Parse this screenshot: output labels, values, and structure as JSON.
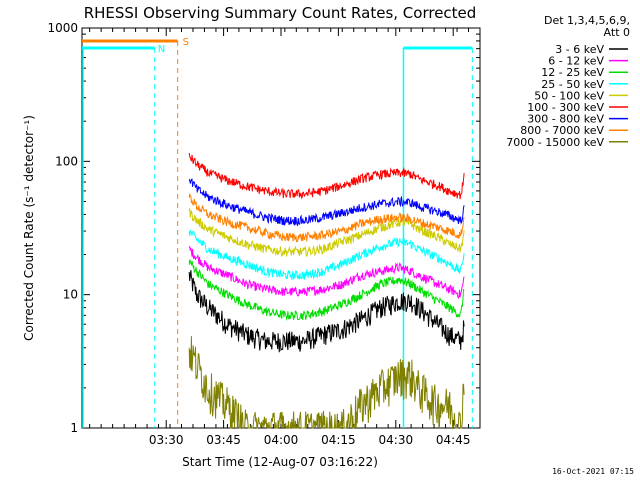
{
  "chart_data": {
    "type": "line",
    "title": "RHESSI Observing Summary Count Rates, Corrected",
    "xlabel": "Start Time (12-Aug-07 03:16:22)",
    "ylabel": "Corrected Count Rate (s⁻¹ detector⁻¹)",
    "y_scale": "log",
    "ylim": [
      1,
      1000
    ],
    "xlim_minutes": [
      -8,
      96
    ],
    "x_ticks": [
      {
        "label": "03:30",
        "value": 14
      },
      {
        "label": "03:45",
        "value": 29
      },
      {
        "label": "04:00",
        "value": 44
      },
      {
        "label": "04:15",
        "value": 59
      },
      {
        "label": "04:30",
        "value": 74
      },
      {
        "label": "04:45",
        "value": 89
      }
    ],
    "y_ticks": [
      {
        "label": "1",
        "value": 1
      },
      {
        "label": "10",
        "value": 10
      },
      {
        "label": "100",
        "value": 100
      },
      {
        "label": "1000",
        "value": 1000
      }
    ],
    "legend_header": [
      "Det 1,3,4,5,6,9,",
      "Att 0"
    ],
    "legend_position": "top-right",
    "x": [
      20,
      22,
      25,
      30,
      35,
      40,
      45,
      50,
      55,
      60,
      65,
      70,
      75,
      78,
      80,
      85,
      88,
      91,
      92
    ],
    "series": [
      {
        "name": "3 - 6 keV",
        "color": "#000000",
        "values": [
          14,
          10,
          8,
          6,
          5,
          4.5,
          4.5,
          4.5,
          5,
          5.5,
          6.5,
          8,
          9,
          9,
          8,
          6,
          5,
          4.5,
          6
        ]
      },
      {
        "name": "6 - 12 keV",
        "color": "#ff00ff",
        "values": [
          22,
          19,
          16,
          14,
          12,
          11,
          10.5,
          10.5,
          11,
          12,
          14,
          15,
          16,
          15,
          14,
          12,
          11,
          10,
          14
        ]
      },
      {
        "name": "12 - 25 keV",
        "color": "#00dd00",
        "values": [
          18,
          15,
          12,
          10,
          8.5,
          7.5,
          7,
          7,
          7.5,
          8.5,
          10,
          12,
          13,
          12,
          11,
          9,
          8,
          7,
          12
        ]
      },
      {
        "name": "25 - 50 keV",
        "color": "#00ffff",
        "values": [
          30,
          26,
          22,
          19,
          17,
          15,
          14,
          14,
          15,
          17,
          20,
          23,
          25,
          24,
          22,
          19,
          17,
          15,
          22
        ]
      },
      {
        "name": "50 - 100 keV",
        "color": "#cccc00",
        "values": [
          42,
          36,
          31,
          27,
          24,
          22,
          21,
          21,
          22,
          25,
          28,
          32,
          35,
          34,
          31,
          27,
          24,
          22,
          30
        ]
      },
      {
        "name": "100 - 300 keV",
        "color": "#ff0000",
        "values": [
          110,
          95,
          82,
          72,
          65,
          60,
          57,
          57,
          60,
          66,
          74,
          80,
          82,
          80,
          74,
          66,
          60,
          56,
          80
        ]
      },
      {
        "name": "300 - 800 keV",
        "color": "#0000ff",
        "values": [
          75,
          62,
          54,
          47,
          42,
          38,
          36,
          36,
          38,
          41,
          45,
          48,
          50,
          49,
          46,
          42,
          39,
          36,
          45
        ]
      },
      {
        "name": "800 - 7000 keV",
        "color": "#ff8000",
        "values": [
          55,
          46,
          40,
          35,
          32,
          29,
          27,
          27,
          28,
          30,
          34,
          37,
          38,
          37,
          35,
          32,
          30,
          28,
          40
        ]
      },
      {
        "name": "7000 - 15000 keV",
        "color": "#808000",
        "values": [
          4,
          3,
          2,
          1.5,
          1,
          1,
          1,
          1,
          1,
          1,
          1.5,
          2,
          2.5,
          2.5,
          2,
          1.5,
          1.5,
          1,
          3
        ]
      }
    ],
    "annotations": [
      {
        "label": "S",
        "color": "#ff8000"
      },
      {
        "label": "N",
        "color": "#00ffff"
      }
    ],
    "footer_stamp": "16-Oct-2021 07:15"
  }
}
